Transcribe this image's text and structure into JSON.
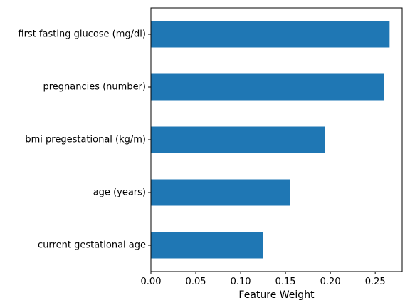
{
  "chart_data": {
    "type": "bar",
    "orientation": "horizontal",
    "categories": [
      "first fasting glucose (mg/dl)",
      "pregnancies (number)",
      "bmi pregestational (kg/m)",
      "age (years)",
      "current gestational age"
    ],
    "values": [
      0.266,
      0.26,
      0.194,
      0.155,
      0.125
    ],
    "xlabel": "Feature Weight",
    "ylabel": "",
    "title": "",
    "xlim": [
      0,
      0.28
    ],
    "xticks": [
      "0.00",
      "0.05",
      "0.10",
      "0.15",
      "0.20",
      "0.25"
    ],
    "xtick_values": [
      0,
      0.05,
      0.1,
      0.15,
      0.2,
      0.25
    ],
    "bar_color": "#1f77b4",
    "grid": false,
    "legend": "none"
  }
}
